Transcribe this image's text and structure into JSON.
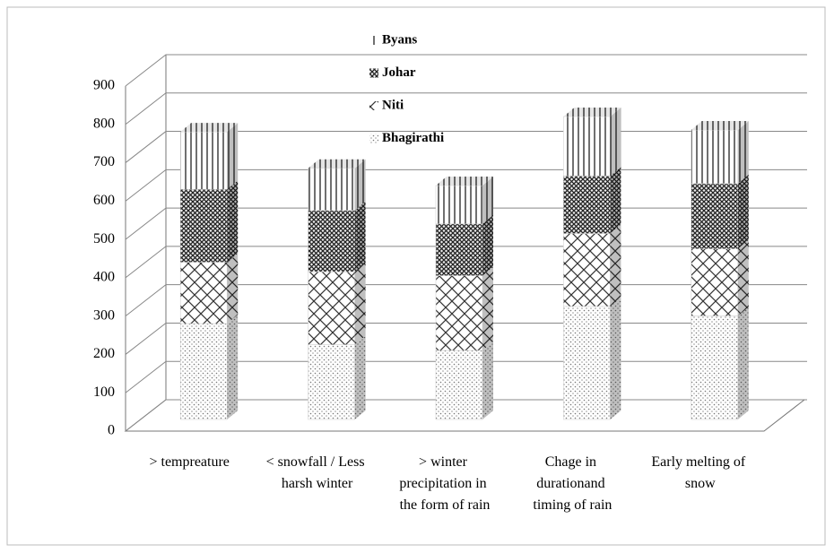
{
  "chart_data": {
    "type": "bar3d_stacked",
    "categories": [
      "> tempreature",
      "< snowfall / Less harsh winter",
      "> winter precipitation in the form of rain",
      "Chage in durationand timing of rain",
      "Early melting of snow"
    ],
    "series": [
      {
        "name": "Bhagirathi",
        "values": [
          250,
          195,
          180,
          295,
          270
        ]
      },
      {
        "name": "Niti",
        "values": [
          160,
          190,
          195,
          190,
          175
        ]
      },
      {
        "name": "Johar",
        "values": [
          190,
          160,
          135,
          150,
          170
        ]
      },
      {
        "name": "Byans",
        "values": [
          150,
          110,
          100,
          155,
          140
        ]
      }
    ],
    "ylim": [
      0,
      900
    ],
    "yticks": [
      0,
      100,
      200,
      300,
      400,
      500,
      600,
      700,
      800,
      900
    ],
    "grid": true,
    "legend": "top"
  }
}
